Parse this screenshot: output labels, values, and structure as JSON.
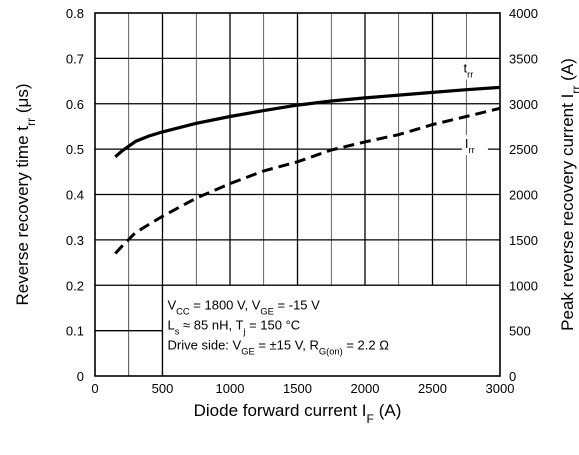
{
  "chart_data": {
    "type": "line",
    "x": [
      150,
      200,
      300,
      400,
      500,
      750,
      1000,
      1250,
      1500,
      1750,
      2000,
      2250,
      2500,
      2750,
      3000
    ],
    "series": [
      {
        "name": "trr",
        "axis": "left",
        "style": "solid",
        "values": [
          0.483,
          0.496,
          0.517,
          0.529,
          0.538,
          0.557,
          0.572,
          0.585,
          0.597,
          0.606,
          0.613,
          0.619,
          0.625,
          0.631,
          0.636
        ]
      },
      {
        "name": "Irr",
        "axis": "right",
        "style": "dashed",
        "values": [
          1350,
          1430,
          1580,
          1670,
          1760,
          1960,
          2120,
          2260,
          2360,
          2490,
          2580,
          2660,
          2770,
          2860,
          2950
        ]
      }
    ],
    "curve_labels": {
      "trr": {
        "main": "t",
        "sub": "rr"
      },
      "irr": {
        "main": "I",
        "sub": "rr"
      }
    },
    "xaxis": {
      "min": 0,
      "max": 3000,
      "ticks": [
        0,
        500,
        1000,
        1500,
        2000,
        2500,
        3000
      ],
      "tick_labels": [
        "0",
        "500",
        "1000",
        "1500",
        "2000",
        "2500",
        "3000"
      ],
      "minor_gridlines": [
        250,
        750,
        1250,
        1750,
        2250,
        2750
      ],
      "title": {
        "main": "Diode forward current  I",
        "sub": "F",
        "tail": "  (A)"
      }
    },
    "yaxis_left": {
      "min": 0,
      "max": 0.8,
      "ticks": [
        0,
        0.1,
        0.2,
        0.3,
        0.4,
        0.5,
        0.6,
        0.7,
        0.8
      ],
      "tick_labels": [
        "0",
        "0.1",
        "0.2",
        "0.3",
        "0.4",
        "0.5",
        "0.6",
        "0.7",
        "0.8"
      ],
      "title": {
        "main": "Reverse recovery time  t",
        "sub": "rr",
        "tail": "  (μs)"
      }
    },
    "yaxis_right": {
      "min": 0,
      "max": 4000,
      "ticks": [
        0,
        500,
        1000,
        1500,
        2000,
        2500,
        3000,
        3500,
        4000
      ],
      "tick_labels": [
        "0",
        "500",
        "1000",
        "1500",
        "2000",
        "2500",
        "3000",
        "3500",
        "4000"
      ],
      "title": {
        "main": "Peak reverse recovery current  I",
        "sub": "rr",
        "tail": "  (A)"
      }
    },
    "grid": true,
    "legend": "none",
    "annotation_lines": [
      [
        {
          "t": "V"
        },
        {
          "t": "CC",
          "sub": true
        },
        {
          "t": " = 1800 V, V"
        },
        {
          "t": "GE",
          "sub": true
        },
        {
          "t": " = -15 V"
        }
      ],
      [
        {
          "t": "L"
        },
        {
          "t": "s",
          "sub": true
        },
        {
          "t": " ≈ 85 nH, T"
        },
        {
          "t": "j",
          "sub": true
        },
        {
          "t": " = 150 °C"
        }
      ],
      [
        {
          "t": "Drive side: V"
        },
        {
          "t": "GE",
          "sub": true
        },
        {
          "t": " = ±15 V, R"
        },
        {
          "t": "G(on)",
          "sub": true
        },
        {
          "t": " = 2.2 Ω"
        }
      ]
    ]
  }
}
